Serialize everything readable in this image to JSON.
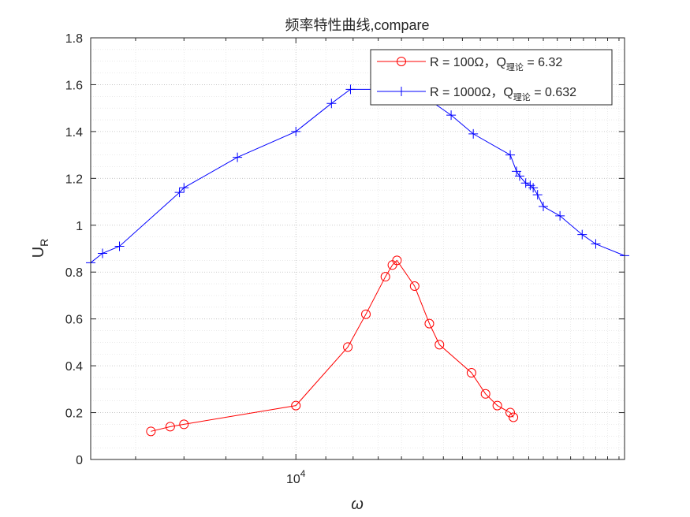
{
  "chart_data": {
    "type": "line",
    "title": "频率特性曲线,compare",
    "xlabel": "ω",
    "ylabel_main": "U",
    "ylabel_sub": "R",
    "xscale": "log",
    "xlim": [
      5200,
      28500
    ],
    "ylim": [
      0,
      1.8
    ],
    "yticks": [
      0,
      0.2,
      0.4,
      0.6,
      0.8,
      1,
      1.2,
      1.4,
      1.6,
      1.8
    ],
    "ytick_labels": [
      "0",
      "0.2",
      "0.4",
      "0.6",
      "0.8",
      "1",
      "1.2",
      "1.4",
      "1.6",
      "1.8"
    ],
    "xtick_major_base": "10",
    "xtick_major_exp": "4",
    "grid": "on (major and minor, dotted)",
    "legend_position": "top-right",
    "series": [
      {
        "name": "R = 100Ω，Q",
        "name_sub": "理论",
        "name_tail": " = 6.32",
        "color": "#ff0000",
        "marker": "circle",
        "x": [
          6300,
          6700,
          7000,
          10000,
          11800,
          12500,
          13300,
          13600,
          13800,
          14600,
          15300,
          15800,
          17500,
          18300,
          19000,
          19800,
          20000
        ],
        "y": [
          0.12,
          0.14,
          0.15,
          0.23,
          0.48,
          0.62,
          0.78,
          0.83,
          0.85,
          0.74,
          0.58,
          0.49,
          0.37,
          0.28,
          0.23,
          0.2,
          0.18
        ]
      },
      {
        "name": "R = 1000Ω，Q",
        "name_sub": "理论",
        "name_tail": " = 0.632",
        "color": "#0000ff",
        "marker": "plus",
        "x": [
          5200,
          5400,
          5700,
          6900,
          7000,
          8300,
          10000,
          11200,
          11900,
          13300,
          13800,
          16400,
          17600,
          19800,
          20200,
          20400,
          20800,
          21100,
          21300,
          21600,
          22000,
          23200,
          24900,
          26000,
          28500
        ],
        "y": [
          0.84,
          0.88,
          0.91,
          1.14,
          1.16,
          1.29,
          1.4,
          1.52,
          1.58,
          1.58,
          1.63,
          1.47,
          1.39,
          1.3,
          1.23,
          1.21,
          1.18,
          1.17,
          1.16,
          1.13,
          1.08,
          1.04,
          0.96,
          0.92,
          0.87
        ]
      }
    ]
  }
}
